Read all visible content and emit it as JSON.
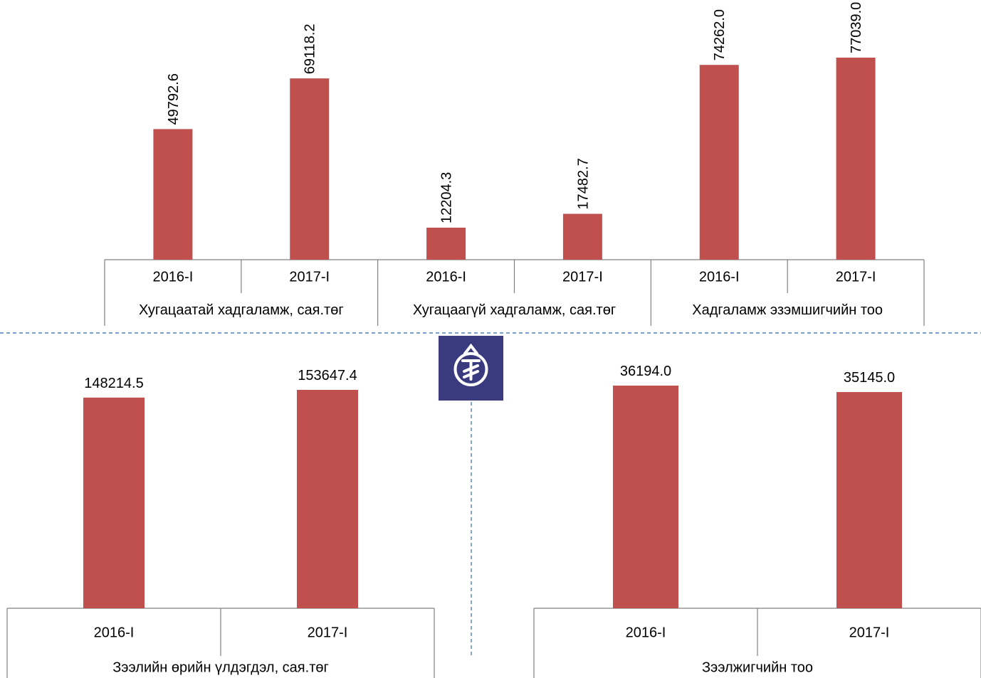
{
  "colors": {
    "bar": "#c0504d",
    "axis": "#808080",
    "divider": "#4f81bd",
    "logo_bg": "#3a3a7e"
  },
  "logo": {
    "icon": "tugrik-coin-icon"
  },
  "chart_data": [
    {
      "type": "bar",
      "label_rotation": "vertical",
      "groups": [
        {
          "name": "Хугацаатай хадгаламж, сая.төг",
          "categories": [
            "2016-I",
            "2017-I"
          ],
          "values": [
            49792.6,
            69118.2
          ],
          "value_labels": [
            "49792.6",
            "69118.2"
          ]
        },
        {
          "name": "Хугацаагүй хадгаламж, сая.төг",
          "categories": [
            "2016-I",
            "2017-I"
          ],
          "values": [
            12204.3,
            17482.7
          ],
          "value_labels": [
            "12204.3",
            "17482.7"
          ]
        },
        {
          "name": "Хадгаламж эзэмшигчийн тоо",
          "categories": [
            "2016-I",
            "2017-I"
          ],
          "values": [
            74262.0,
            77039.0
          ],
          "value_labels": [
            "74262.0",
            "77039.0"
          ]
        }
      ]
    },
    {
      "type": "bar",
      "label_rotation": "horizontal",
      "groups": [
        {
          "name": "Зээлийн өрийн үлдэгдэл, сая.төг",
          "categories": [
            "2016-I",
            "2017-I"
          ],
          "values": [
            148214.5,
            153647.4
          ],
          "value_labels": [
            "148214.5",
            "153647.4"
          ]
        }
      ]
    },
    {
      "type": "bar",
      "label_rotation": "horizontal",
      "groups": [
        {
          "name": "Зээлжигчийн тоо",
          "categories": [
            "2016-I",
            "2017-I"
          ],
          "values": [
            36194.0,
            35145.0
          ],
          "value_labels": [
            "36194.0",
            "35145.0"
          ]
        }
      ]
    }
  ]
}
